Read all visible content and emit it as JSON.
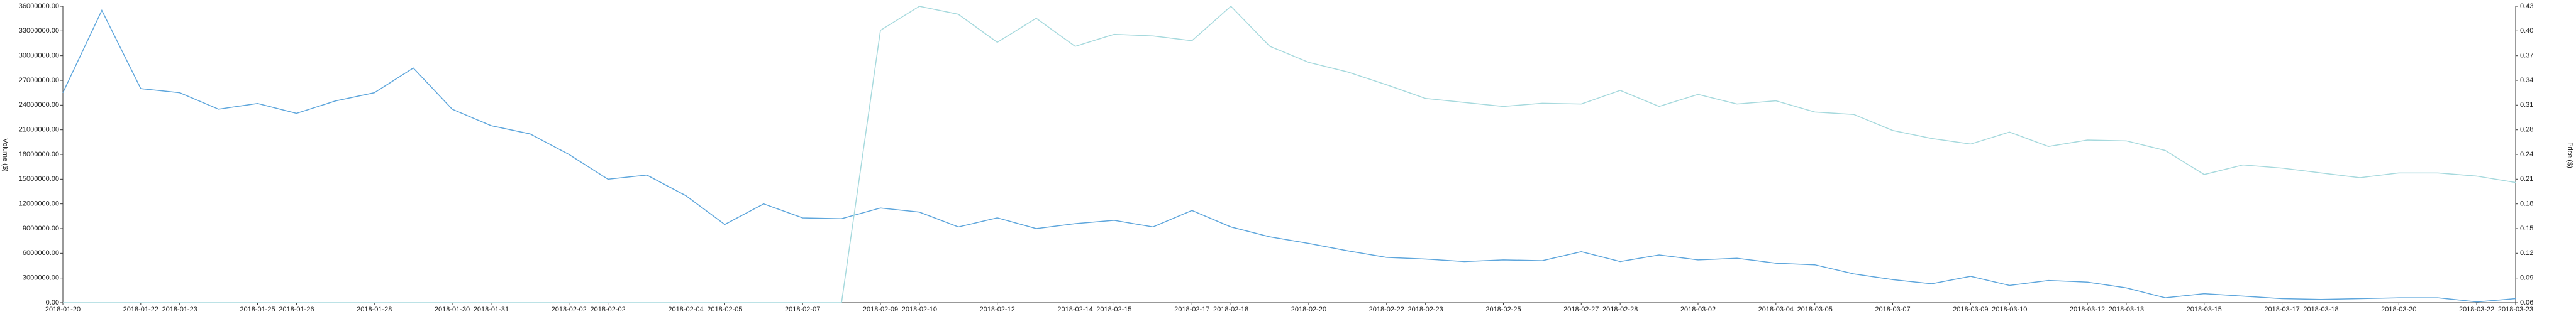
{
  "chart_data": {
    "type": "line",
    "y_label": "Volume ($)",
    "y2_label": "Price ($)",
    "categories": [
      "2018-01-20",
      null,
      "2018-01-22",
      "2018-01-23",
      null,
      "2018-01-25",
      "2018-01-26",
      null,
      "2018-01-28",
      null,
      "2018-01-30",
      "2018-01-31",
      null,
      "2018-02-02",
      "2018-02-02",
      null,
      "2018-02-04",
      "2018-02-05",
      null,
      "2018-02-07",
      null,
      "2018-02-09",
      "2018-02-10",
      null,
      "2018-02-12",
      null,
      "2018-02-14",
      "2018-02-15",
      null,
      "2018-02-17",
      "2018-02-18",
      null,
      "2018-02-20",
      null,
      "2018-02-22",
      "2018-02-23",
      null,
      "2018-02-25",
      null,
      "2018-02-27",
      "2018-02-28",
      null,
      "2018-03-02",
      null,
      "2018-03-04",
      "2018-03-05",
      null,
      "2018-03-07",
      null,
      "2018-03-09",
      "2018-03-10",
      null,
      "2018-03-12",
      "2018-03-13",
      null,
      "2018-03-15",
      null,
      "2018-03-17",
      "2018-03-18",
      null,
      "2018-03-20",
      null,
      "2018-03-22",
      "2018-03-23"
    ],
    "series": [
      {
        "name": "Volume",
        "color": "#5ea6dc",
        "axis": "y",
        "values": [
          25500000,
          35500000,
          26000000,
          25500000,
          23500000,
          24200000,
          23000000,
          24500000,
          25500000,
          28500000,
          23500000,
          21500000,
          20500000,
          18000000,
          15000000,
          15500000,
          13000000,
          9500000,
          12000000,
          10300000,
          10200000,
          11500000,
          11000000,
          9200000,
          10300000,
          9000000,
          9600000,
          10000000,
          9200000,
          11200000,
          9200000,
          8000000,
          7200000,
          6300000,
          5500000,
          5300000,
          5000000,
          5200000,
          5100000,
          6200000,
          5000000,
          5800000,
          5200000,
          5400000,
          4800000,
          4600000,
          3500000,
          2800000,
          2300000,
          3200000,
          2100000,
          2700000,
          2500000,
          1800000,
          600000,
          1100000,
          800000,
          500000,
          400000,
          500000,
          600000,
          600000,
          100000,
          500000
        ]
      },
      {
        "name": "Price",
        "color": "#a6d9dd",
        "axis": "y2",
        "values": [
          0.06,
          0.06,
          0.06,
          0.06,
          0.06,
          0.06,
          0.06,
          0.06,
          0.06,
          0.06,
          0.06,
          0.06,
          0.06,
          0.06,
          0.06,
          0.06,
          0.06,
          0.06,
          0.06,
          0.06,
          0.06,
          0.4,
          0.43,
          0.42,
          0.385,
          0.415,
          0.38,
          0.395,
          0.393,
          0.387,
          0.43,
          0.38,
          0.36,
          0.348,
          0.332,
          0.315,
          0.31,
          0.305,
          0.309,
          0.308,
          0.325,
          0.305,
          0.32,
          0.308,
          0.312,
          0.298,
          0.295,
          0.275,
          0.265,
          0.258,
          0.273,
          0.255,
          0.263,
          0.262,
          0.25,
          0.22,
          0.232,
          0.228,
          0.222,
          0.216,
          0.222,
          0.222,
          0.218,
          0.21
        ]
      }
    ],
    "ylim": [
      0,
      36000000
    ],
    "yticks": [
      {
        "value": 0,
        "label": "0.00"
      },
      {
        "value": 3000000,
        "label": "3000000.00"
      },
      {
        "value": 6000000,
        "label": "6000000.00"
      },
      {
        "value": 9000000,
        "label": "9000000.00"
      },
      {
        "value": 12000000,
        "label": "12000000.00"
      },
      {
        "value": 15000000,
        "label": "15000000.00"
      },
      {
        "value": 18000000,
        "label": "18000000.00"
      },
      {
        "value": 21000000,
        "label": "21000000.00"
      },
      {
        "value": 24000000,
        "label": "24000000.00"
      },
      {
        "value": 27000000,
        "label": "27000000.00"
      },
      {
        "value": 30000000,
        "label": "30000000.00"
      },
      {
        "value": 33000000,
        "label": "33000000.00"
      },
      {
        "value": 36000000,
        "label": "36000000.00"
      }
    ],
    "y2lim": [
      0.06,
      0.43
    ],
    "y2ticks": [
      0.06,
      {
        "value": 0.0908,
        "label": "0.09"
      },
      {
        "value": 0.1217,
        "label": "0.12"
      },
      {
        "value": 0.1525,
        "label": "0.15"
      },
      {
        "value": 0.1833,
        "label": "0.18"
      },
      {
        "value": 0.2142,
        "label": "0.21"
      },
      {
        "value": 0.245,
        "label": "0.24"
      },
      {
        "value": 0.2758,
        "label": "0.28"
      },
      {
        "value": 0.3067,
        "label": "0.31"
      },
      {
        "value": 0.3375,
        "label": "0.34"
      },
      {
        "value": 0.3683,
        "label": "0.37"
      },
      {
        "value": 0.3992,
        "label": "0.40"
      },
      0.43
    ]
  }
}
